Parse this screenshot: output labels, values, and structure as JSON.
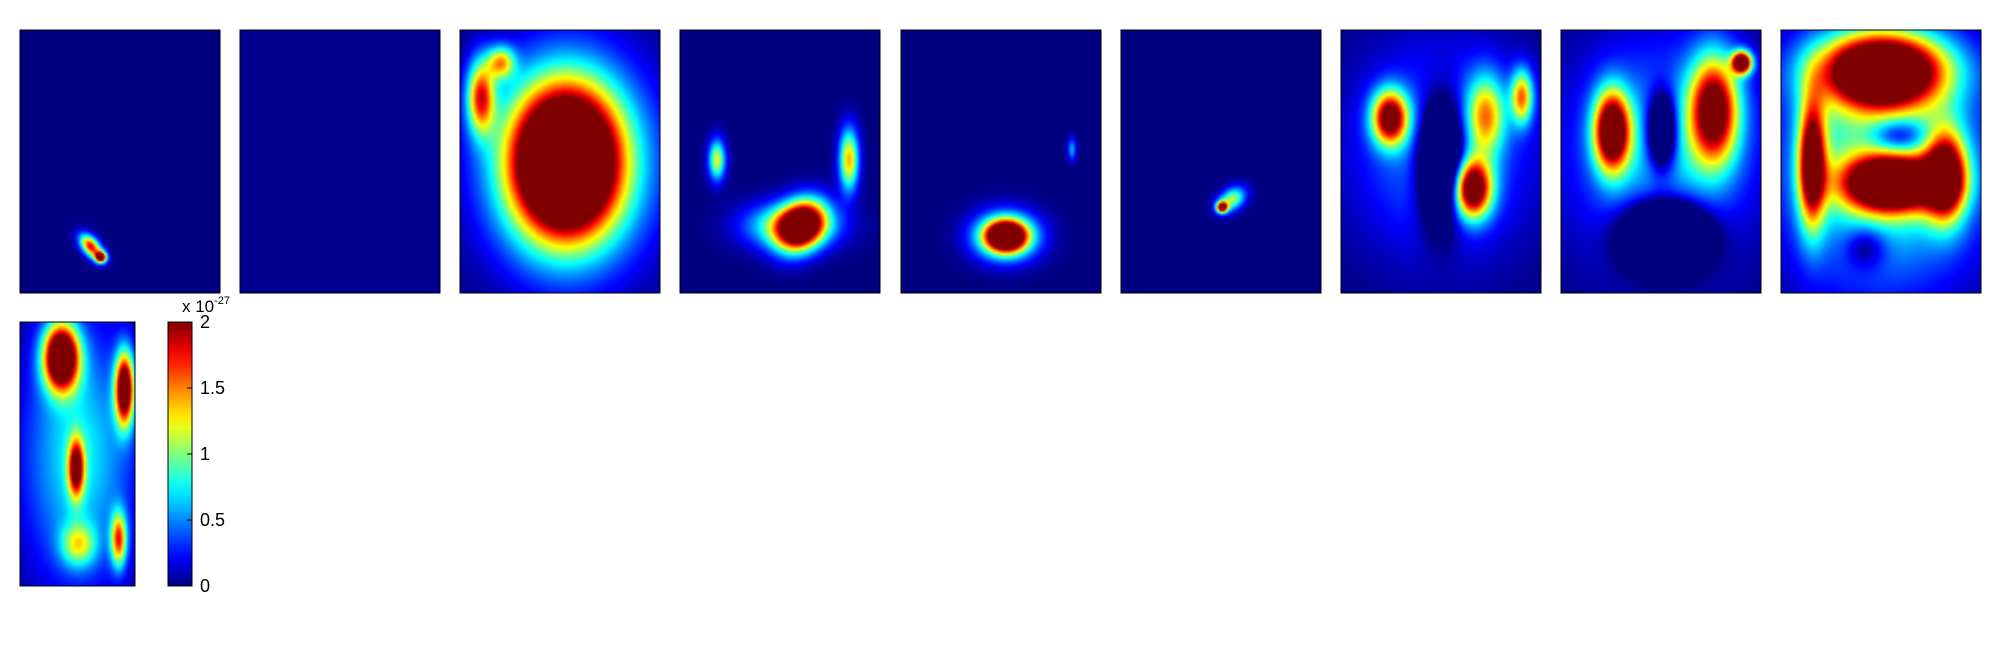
{
  "chart_data": {
    "type": "heatmap",
    "title": "",
    "xlabel": "",
    "ylabel": "",
    "colormap": "jet",
    "colormap_stops": [
      "#000080",
      "#0000ff",
      "#00ffff",
      "#ffff00",
      "#ff0000",
      "#800000"
    ],
    "background_color": "#00008f",
    "colorbar": {
      "range": [
        0,
        2
      ],
      "ticks": [
        "0",
        "0.5",
        "1",
        "1.5",
        "2"
      ],
      "multiplier_base": "x 10",
      "multiplier_exponent": "-27"
    },
    "grid": false,
    "legend": "none",
    "panels": [
      {
        "id": 1,
        "hotspots": [
          {
            "cx": 0.35,
            "cy": 0.82,
            "rx": 0.09,
            "ry": 0.05,
            "rot": 35,
            "value": 1.8
          },
          {
            "cx": 0.4,
            "cy": 0.86,
            "rx": 0.04,
            "ry": 0.03,
            "value": 2.2
          }
        ]
      },
      {
        "id": 2,
        "hotspots": []
      },
      {
        "id": 3,
        "hotspots": [
          {
            "cx": 0.55,
            "cy": 0.5,
            "rx": 0.62,
            "ry": 0.6,
            "value": 0.5
          },
          {
            "cx": 0.53,
            "cy": 0.5,
            "rx": 0.48,
            "ry": 0.48,
            "value": 1.2
          },
          {
            "cx": 0.52,
            "cy": 0.5,
            "rx": 0.36,
            "ry": 0.38,
            "value": 2.6
          },
          {
            "cx": 0.1,
            "cy": 0.25,
            "rx": 0.1,
            "ry": 0.2,
            "value": 1.6
          },
          {
            "cx": 0.2,
            "cy": 0.12,
            "rx": 0.1,
            "ry": 0.09,
            "value": 1.2
          }
        ]
      },
      {
        "id": 4,
        "hotspots": [
          {
            "cx": 0.55,
            "cy": 0.74,
            "rx": 0.32,
            "ry": 0.12,
            "value": 1.1
          },
          {
            "cx": 0.6,
            "cy": 0.74,
            "rx": 0.18,
            "ry": 0.13,
            "rot": -25,
            "value": 2.3
          },
          {
            "cx": 0.18,
            "cy": 0.49,
            "rx": 0.06,
            "ry": 0.11,
            "value": 1.2
          },
          {
            "cx": 0.84,
            "cy": 0.49,
            "rx": 0.07,
            "ry": 0.17,
            "value": 1.4
          }
        ]
      },
      {
        "id": 5,
        "hotspots": [
          {
            "cx": 0.52,
            "cy": 0.78,
            "rx": 0.23,
            "ry": 0.13,
            "value": 1.3
          },
          {
            "cx": 0.52,
            "cy": 0.78,
            "rx": 0.14,
            "ry": 0.08,
            "value": 2.5
          },
          {
            "cx": 0.85,
            "cy": 0.45,
            "rx": 0.03,
            "ry": 0.06,
            "value": 0.6
          }
        ]
      },
      {
        "id": 6,
        "hotspots": [
          {
            "cx": 0.55,
            "cy": 0.64,
            "rx": 0.1,
            "ry": 0.06,
            "rot": -20,
            "value": 1.1
          },
          {
            "cx": 0.5,
            "cy": 0.67,
            "rx": 0.04,
            "ry": 0.03,
            "value": 2.2
          }
        ]
      },
      {
        "id": 7,
        "hotspots": [
          {
            "cx": 0.5,
            "cy": 0.45,
            "rx": 0.62,
            "ry": 0.55,
            "value": 0.55
          },
          {
            "cx": 0.24,
            "cy": 0.33,
            "rx": 0.13,
            "ry": 0.15,
            "value": 2.1
          },
          {
            "cx": 0.65,
            "cy": 0.6,
            "rx": 0.14,
            "ry": 0.16,
            "value": 2.3
          },
          {
            "cx": 0.72,
            "cy": 0.32,
            "rx": 0.14,
            "ry": 0.22,
            "value": 1.2
          },
          {
            "cx": 0.9,
            "cy": 0.25,
            "rx": 0.08,
            "ry": 0.15,
            "value": 1.4
          },
          {
            "cx": 0.5,
            "cy": 0.5,
            "rx": 0.16,
            "ry": 0.32,
            "value": -1.8
          }
        ]
      },
      {
        "id": 8,
        "hotspots": [
          {
            "cx": 0.5,
            "cy": 0.45,
            "rx": 0.66,
            "ry": 0.58,
            "value": 0.65
          },
          {
            "cx": 0.25,
            "cy": 0.38,
            "rx": 0.13,
            "ry": 0.22,
            "value": 2.4
          },
          {
            "cx": 0.76,
            "cy": 0.3,
            "rx": 0.18,
            "ry": 0.3,
            "value": 2.1
          },
          {
            "cx": 0.9,
            "cy": 0.12,
            "rx": 0.07,
            "ry": 0.06,
            "value": 2.6
          },
          {
            "cx": 0.52,
            "cy": 0.78,
            "rx": 0.27,
            "ry": 0.17,
            "value": -2.2
          },
          {
            "cx": 0.5,
            "cy": 0.38,
            "rx": 0.1,
            "ry": 0.2,
            "value": -1.5
          }
        ]
      },
      {
        "id": 9,
        "hotspots": [
          {
            "cx": 0.5,
            "cy": 0.5,
            "rx": 0.7,
            "ry": 0.65,
            "value": 1.0
          },
          {
            "cx": 0.5,
            "cy": 0.15,
            "rx": 0.45,
            "ry": 0.2,
            "value": 3.0
          },
          {
            "cx": 0.55,
            "cy": 0.58,
            "rx": 0.35,
            "ry": 0.15,
            "value": 2.6
          },
          {
            "cx": 0.15,
            "cy": 0.5,
            "rx": 0.1,
            "ry": 0.35,
            "value": 2.1
          },
          {
            "cx": 0.82,
            "cy": 0.55,
            "rx": 0.15,
            "ry": 0.25,
            "value": 2.0
          },
          {
            "cx": 0.58,
            "cy": 0.4,
            "rx": 0.2,
            "ry": 0.1,
            "value": -0.8
          },
          {
            "cx": 0.42,
            "cy": 0.82,
            "rx": 0.15,
            "ry": 0.12,
            "value": -0.5
          }
        ]
      },
      {
        "id": 10,
        "hotspots": [
          {
            "cx": 0.5,
            "cy": 0.5,
            "rx": 0.7,
            "ry": 0.7,
            "value": 0.75
          },
          {
            "cx": 0.35,
            "cy": 0.13,
            "rx": 0.22,
            "ry": 0.18,
            "value": 2.8
          },
          {
            "cx": 0.9,
            "cy": 0.25,
            "rx": 0.12,
            "ry": 0.2,
            "value": 2.4
          },
          {
            "cx": 0.48,
            "cy": 0.55,
            "rx": 0.1,
            "ry": 0.16,
            "value": 1.8
          },
          {
            "cx": 0.85,
            "cy": 0.82,
            "rx": 0.1,
            "ry": 0.15,
            "value": 1.5
          },
          {
            "cx": 0.5,
            "cy": 0.84,
            "rx": 0.22,
            "ry": 0.12,
            "value": 0.9
          }
        ]
      }
    ]
  }
}
